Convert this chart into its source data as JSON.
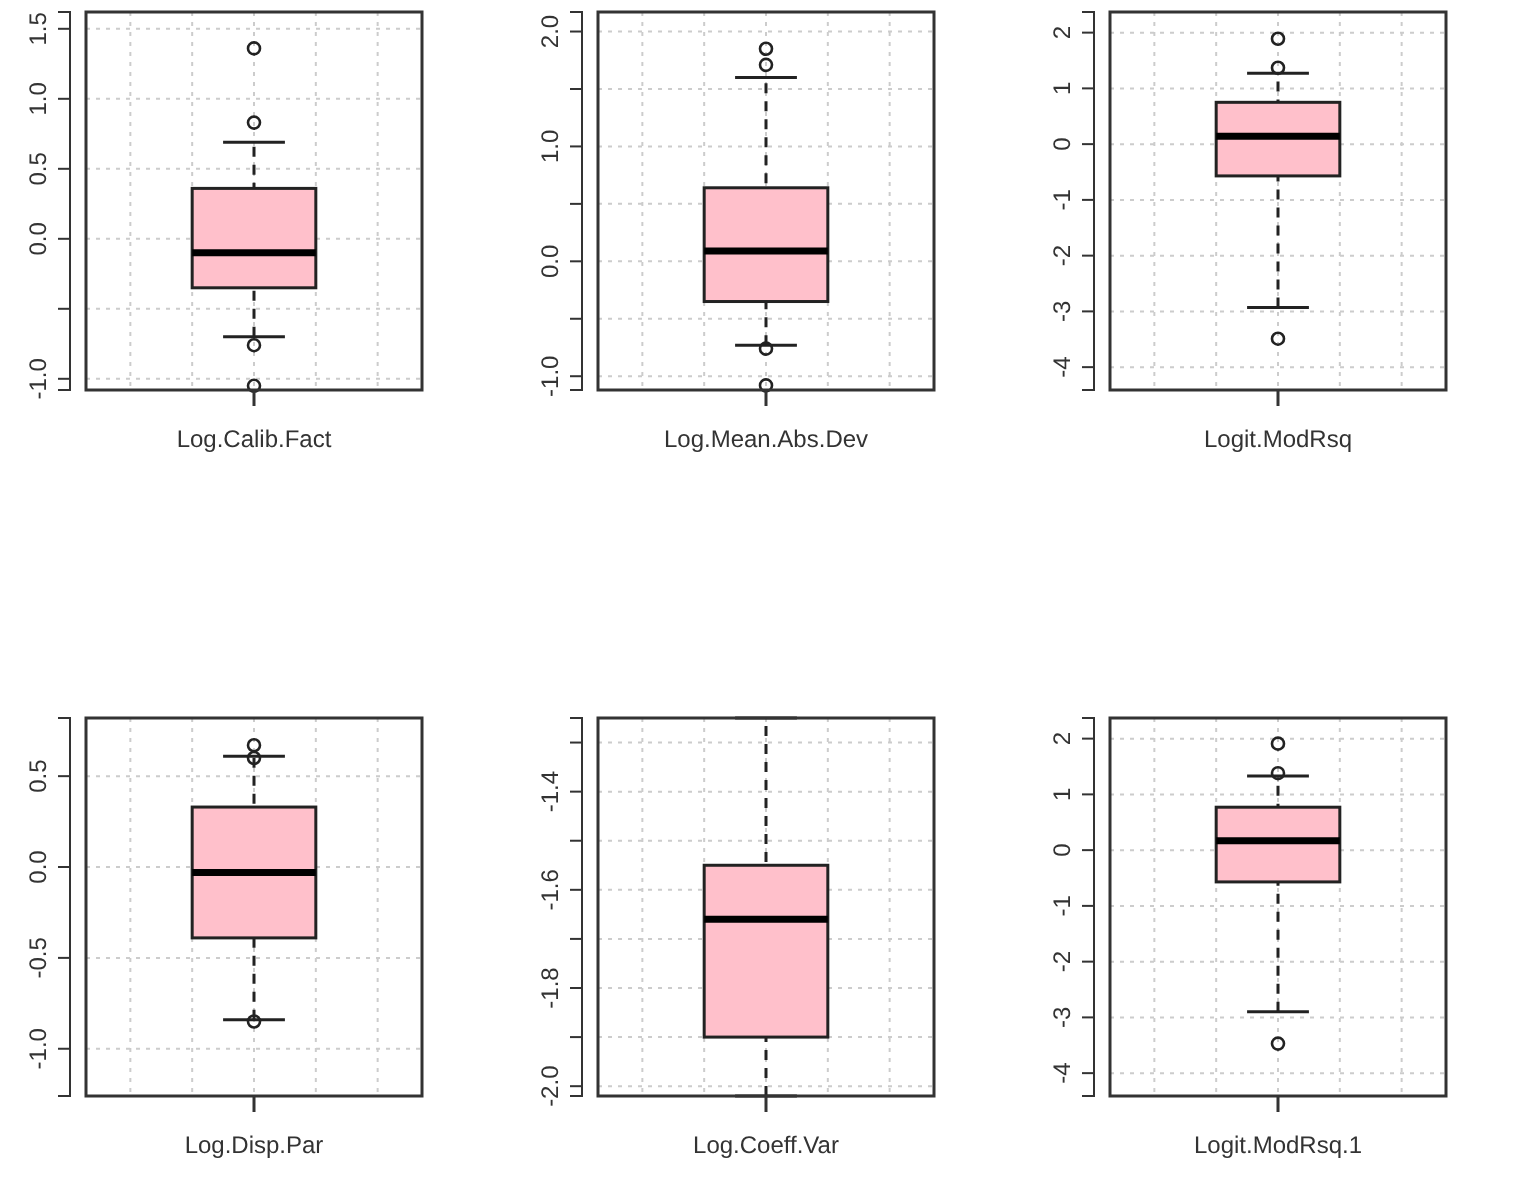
{
  "chart_data": [
    {
      "type": "box",
      "categories": [
        "Log.Calib.Fact"
      ],
      "grid": true,
      "ylim": [
        -1.08,
        1.62
      ],
      "yticks": [
        {
          "value": -1.0,
          "label": "-1.0"
        },
        {
          "value": -0.5,
          "label": null
        },
        {
          "value": 0.0,
          "label": "0.0"
        },
        0.5,
        {
          "value": 1.0,
          "label": "1.0"
        },
        1.5
      ],
      "series": [
        {
          "color": "#ffc0cb",
          "boxes": [
            {
              "low": -0.7,
              "q1": -0.35,
              "median": -0.1,
              "q3": 0.36,
              "high": 0.69,
              "outliers": [
                1.36,
                0.83,
                -0.76,
                -1.05
              ]
            }
          ]
        }
      ]
    },
    {
      "type": "box",
      "categories": [
        "Log.Mean.Abs.Dev"
      ],
      "grid": true,
      "ylim": [
        -1.12,
        2.17
      ],
      "yticks": [
        {
          "value": -1.0,
          "label": "-1.0"
        },
        {
          "value": -0.5,
          "label": null
        },
        {
          "value": 0.0,
          "label": "0.0"
        },
        {
          "value": 0.5,
          "label": null
        },
        {
          "value": 1.0,
          "label": "1.0"
        },
        {
          "value": 1.5,
          "label": null
        },
        {
          "value": 2.0,
          "label": "2.0"
        }
      ],
      "series": [
        {
          "color": "#ffc0cb",
          "boxes": [
            {
              "low": -0.73,
              "q1": -0.35,
              "median": 0.09,
              "q3": 0.64,
              "high": 1.6,
              "outliers": [
                1.85,
                1.71,
                -0.76,
                -1.08
              ]
            }
          ]
        }
      ]
    },
    {
      "type": "box",
      "categories": [
        "Logit.ModRsq"
      ],
      "grid": true,
      "ylim": [
        -4.41,
        2.37
      ],
      "yticks": [
        -4,
        -3,
        -2,
        -1,
        0,
        1,
        2
      ],
      "series": [
        {
          "color": "#ffc0cb",
          "boxes": [
            {
              "low": -2.93,
              "q1": -0.57,
              "median": 0.14,
              "q3": 0.75,
              "high": 1.27,
              "outliers": [
                1.89,
                1.37,
                -3.49
              ]
            }
          ]
        }
      ]
    },
    {
      "type": "box",
      "categories": [
        "Log.Disp.Par"
      ],
      "grid": true,
      "ylim": [
        -1.26,
        0.82
      ],
      "yticks": [
        {
          "value": -1.0,
          "label": "-1.0"
        },
        -0.5,
        {
          "value": 0.0,
          "label": "0.0"
        },
        0.5
      ],
      "series": [
        {
          "color": "#ffc0cb",
          "boxes": [
            {
              "low": -0.84,
              "q1": -0.39,
              "median": -0.03,
              "q3": 0.33,
              "high": 0.61,
              "outliers": [
                0.67,
                0.6,
                -0.85
              ]
            }
          ]
        }
      ]
    },
    {
      "type": "box",
      "categories": [
        "Log.Coeff.Var"
      ],
      "grid": true,
      "ylim": [
        -2.02,
        -1.25
      ],
      "yticks": [
        {
          "value": -2.0,
          "label": "-2.0"
        },
        {
          "value": -1.9,
          "label": null
        },
        -1.8,
        {
          "value": -1.7,
          "label": null
        },
        -1.6,
        {
          "value": -1.5,
          "label": null
        },
        -1.4,
        {
          "value": -1.3,
          "label": null
        }
      ],
      "series": [
        {
          "color": "#ffc0cb",
          "boxes": [
            {
              "low": -2.02,
              "q1": -1.9,
              "median": -1.66,
              "q3": -1.55,
              "high": -1.25
            }
          ]
        }
      ]
    },
    {
      "type": "box",
      "categories": [
        "Logit.ModRsq.1"
      ],
      "grid": true,
      "ylim": [
        -4.41,
        2.37
      ],
      "yticks": [
        -4,
        -3,
        -2,
        -1,
        0,
        1,
        2
      ],
      "series": [
        {
          "color": "#ffc0cb",
          "boxes": [
            {
              "low": -2.9,
              "q1": -0.57,
              "median": 0.17,
              "q3": 0.77,
              "high": 1.33,
              "outliers": [
                1.91,
                1.38,
                -3.47
              ]
            }
          ]
        }
      ]
    }
  ]
}
